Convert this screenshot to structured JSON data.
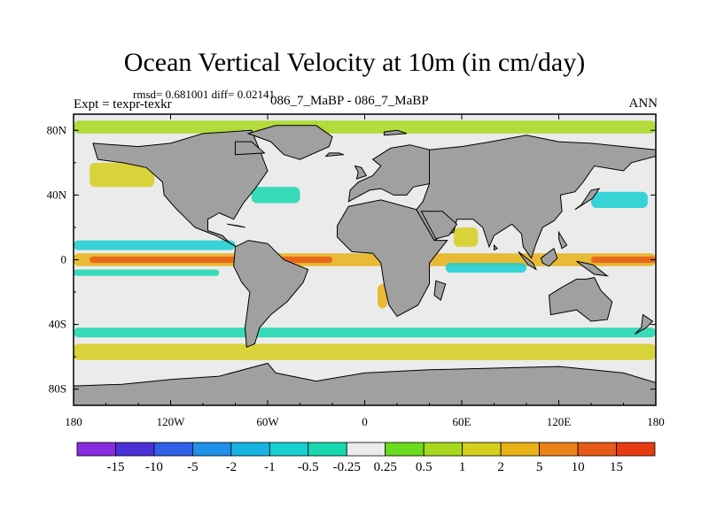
{
  "header": {
    "title": "Ocean Vertical Velocity at 10m (in cm/day)",
    "stats": "rmsd= 0.681001 diff= 0.02141",
    "left_label": "Expt = texpr-texkr",
    "center_label": "086_7_MaBP - 086_7_MaBP",
    "right_label": "ANN"
  },
  "colors": {
    "land": "#a0a0a0",
    "near_zero": "#ebebeb",
    "frame": "#000000"
  },
  "chart_data": {
    "type": "heatmap",
    "title": "Ocean Vertical Velocity at 10m (in cm/day)",
    "subtitle": "086_7_MaBP - 086_7_MaBP",
    "units": "cm/day",
    "xlim": [
      -180,
      180
    ],
    "ylim": [
      -90,
      90
    ],
    "x_ticks": [
      {
        "value": -180,
        "label": "180"
      },
      {
        "value": -120,
        "label": "120W"
      },
      {
        "value": -60,
        "label": "60W"
      },
      {
        "value": 0,
        "label": "0"
      },
      {
        "value": 60,
        "label": "60E"
      },
      {
        "value": 120,
        "label": "120E"
      },
      {
        "value": 180,
        "label": "180"
      }
    ],
    "y_ticks": [
      {
        "value": 80,
        "label": "80N"
      },
      {
        "value": 40,
        "label": "40N"
      },
      {
        "value": 0,
        "label": "0"
      },
      {
        "value": -40,
        "label": "40S"
      },
      {
        "value": -80,
        "label": "80S"
      }
    ],
    "colorbar": {
      "labels": [
        "-15",
        "-10",
        "-5",
        "-2",
        "-1",
        "-0.5",
        "-0.25",
        "0.25",
        "0.5",
        "1",
        "2",
        "5",
        "10",
        "15"
      ],
      "colors": [
        "#8a2be2",
        "#4b2fd6",
        "#2f5fe6",
        "#1f8fe8",
        "#16b4e2",
        "#17cfd2",
        "#19d8b0",
        "#ebebeb",
        "#6bdc1e",
        "#a8d81e",
        "#d6cf1c",
        "#e8b116",
        "#ea8418",
        "#e85a18",
        "#e83a10"
      ]
    },
    "land_regions": [
      {
        "name": "North America",
        "points": [
          [
            -168,
            72
          ],
          [
            -140,
            70
          ],
          [
            -120,
            72
          ],
          [
            -100,
            78
          ],
          [
            -70,
            80
          ],
          [
            -65,
            68
          ],
          [
            -60,
            55
          ],
          [
            -67,
            45
          ],
          [
            -75,
            35
          ],
          [
            -81,
            25
          ],
          [
            -90,
            29
          ],
          [
            -97,
            25
          ],
          [
            -97,
            18
          ],
          [
            -88,
            15
          ],
          [
            -83,
            10
          ],
          [
            -79,
            8
          ],
          [
            -92,
            15
          ],
          [
            -105,
            20
          ],
          [
            -110,
            25
          ],
          [
            -117,
            32
          ],
          [
            -124,
            40
          ],
          [
            -125,
            48
          ],
          [
            -135,
            57
          ],
          [
            -150,
            60
          ],
          [
            -165,
            62
          ]
        ]
      },
      {
        "name": "Greenland",
        "points": [
          [
            -72,
            78
          ],
          [
            -55,
            83
          ],
          [
            -30,
            83
          ],
          [
            -20,
            76
          ],
          [
            -22,
            70
          ],
          [
            -40,
            62
          ],
          [
            -50,
            65
          ],
          [
            -58,
            73
          ]
        ]
      },
      {
        "name": "South America",
        "points": [
          [
            -80,
            8
          ],
          [
            -72,
            12
          ],
          [
            -60,
            10
          ],
          [
            -50,
            0
          ],
          [
            -35,
            -6
          ],
          [
            -38,
            -14
          ],
          [
            -48,
            -26
          ],
          [
            -58,
            -34
          ],
          [
            -65,
            -42
          ],
          [
            -68,
            -52
          ],
          [
            -73,
            -54
          ],
          [
            -74,
            -42
          ],
          [
            -71,
            -20
          ],
          [
            -76,
            -14
          ],
          [
            -81,
            -4
          ]
        ]
      },
      {
        "name": "Africa",
        "points": [
          [
            -17,
            21
          ],
          [
            -10,
            33
          ],
          [
            10,
            37
          ],
          [
            32,
            31
          ],
          [
            43,
            12
          ],
          [
            51,
            12
          ],
          [
            40,
            -2
          ],
          [
            40,
            -15
          ],
          [
            33,
            -28
          ],
          [
            20,
            -35
          ],
          [
            15,
            -28
          ],
          [
            12,
            -15
          ],
          [
            10,
            -2
          ],
          [
            5,
            4
          ],
          [
            -8,
            5
          ],
          [
            -17,
            14
          ]
        ]
      },
      {
        "name": "Europe",
        "points": [
          [
            -10,
            36
          ],
          [
            -9,
            43
          ],
          [
            -4,
            48
          ],
          [
            5,
            52
          ],
          [
            10,
            58
          ],
          [
            5,
            62
          ],
          [
            16,
            69
          ],
          [
            28,
            71
          ],
          [
            40,
            68
          ],
          [
            45,
            60
          ],
          [
            40,
            47
          ],
          [
            30,
            45
          ],
          [
            26,
            40
          ],
          [
            18,
            40
          ],
          [
            10,
            44
          ],
          [
            3,
            43
          ]
        ]
      },
      {
        "name": "Asia",
        "points": [
          [
            40,
            68
          ],
          [
            60,
            70
          ],
          [
            78,
            73
          ],
          [
            100,
            77
          ],
          [
            120,
            73
          ],
          [
            140,
            72
          ],
          [
            160,
            70
          ],
          [
            180,
            68
          ],
          [
            180,
            64
          ],
          [
            165,
            60
          ],
          [
            160,
            55
          ],
          [
            142,
            58
          ],
          [
            135,
            48
          ],
          [
            130,
            42
          ],
          [
            121,
            40
          ],
          [
            122,
            30
          ],
          [
            117,
            24
          ],
          [
            110,
            20
          ],
          [
            106,
            10
          ],
          [
            103,
            1
          ],
          [
            98,
            8
          ],
          [
            97,
            16
          ],
          [
            91,
            22
          ],
          [
            80,
            15
          ],
          [
            77,
            8
          ],
          [
            73,
            20
          ],
          [
            67,
            25
          ],
          [
            57,
            25
          ],
          [
            55,
            17
          ],
          [
            45,
            13
          ],
          [
            43,
            12
          ],
          [
            32,
            31
          ],
          [
            36,
            36
          ],
          [
            40,
            47
          ]
        ]
      },
      {
        "name": "Arabia",
        "points": [
          [
            35,
            30
          ],
          [
            48,
            30
          ],
          [
            57,
            22
          ],
          [
            52,
            15
          ],
          [
            44,
            13
          ]
        ]
      },
      {
        "name": "Australia",
        "points": [
          [
            114,
            -22
          ],
          [
            122,
            -17
          ],
          [
            131,
            -12
          ],
          [
            137,
            -12
          ],
          [
            142,
            -11
          ],
          [
            146,
            -19
          ],
          [
            153,
            -26
          ],
          [
            150,
            -37
          ],
          [
            140,
            -38
          ],
          [
            131,
            -31
          ],
          [
            115,
            -34
          ]
        ]
      },
      {
        "name": "Antarctica",
        "points": [
          [
            -180,
            -78
          ],
          [
            -150,
            -77
          ],
          [
            -120,
            -74
          ],
          [
            -90,
            -72
          ],
          [
            -60,
            -64
          ],
          [
            -55,
            -70
          ],
          [
            -30,
            -75
          ],
          [
            0,
            -70
          ],
          [
            40,
            -68
          ],
          [
            80,
            -67
          ],
          [
            120,
            -66
          ],
          [
            160,
            -70
          ],
          [
            180,
            -76
          ],
          [
            180,
            -90
          ],
          [
            -180,
            -90
          ]
        ]
      },
      {
        "name": "Madagascar",
        "points": [
          [
            44,
            -13
          ],
          [
            50,
            -15
          ],
          [
            47,
            -25
          ],
          [
            43,
            -22
          ]
        ]
      },
      {
        "name": "Japan",
        "points": [
          [
            130,
            31
          ],
          [
            141,
            38
          ],
          [
            145,
            44
          ],
          [
            140,
            43
          ],
          [
            134,
            34
          ]
        ]
      },
      {
        "name": "Borneo",
        "points": [
          [
            109,
            1
          ],
          [
            117,
            7
          ],
          [
            119,
            1
          ],
          [
            114,
            -4
          ],
          [
            110,
            -2
          ]
        ]
      },
      {
        "name": "Sumatra",
        "points": [
          [
            95,
            5
          ],
          [
            104,
            -2
          ],
          [
            106,
            -6
          ],
          [
            101,
            -3
          ]
        ]
      },
      {
        "name": "New Guinea",
        "points": [
          [
            131,
            -1
          ],
          [
            141,
            -3
          ],
          [
            150,
            -10
          ],
          [
            142,
            -9
          ],
          [
            135,
            -4
          ]
        ]
      },
      {
        "name": "New Zealand",
        "points": [
          [
            172,
            -34
          ],
          [
            178,
            -38
          ],
          [
            174,
            -42
          ],
          [
            167,
            -46
          ],
          [
            171,
            -42
          ]
        ]
      },
      {
        "name": "UK",
        "points": [
          [
            -5,
            50
          ],
          [
            1,
            52
          ],
          [
            -2,
            57
          ],
          [
            -6,
            58
          ],
          [
            -4,
            54
          ]
        ]
      },
      {
        "name": "Iceland",
        "points": [
          [
            -24,
            64
          ],
          [
            -13,
            65
          ],
          [
            -16,
            66
          ],
          [
            -22,
            66
          ]
        ]
      },
      {
        "name": "Baffin",
        "points": [
          [
            -80,
            65
          ],
          [
            -62,
            66
          ],
          [
            -70,
            73
          ],
          [
            -80,
            73
          ]
        ]
      },
      {
        "name": "Svalbard",
        "points": [
          [
            12,
            77
          ],
          [
            26,
            78
          ],
          [
            20,
            80
          ],
          [
            12,
            79
          ]
        ]
      },
      {
        "name": "Cuba",
        "points": [
          [
            -85,
            22
          ],
          [
            -74,
            20
          ],
          [
            -78,
            21
          ]
        ]
      },
      {
        "name": "Philippines",
        "points": [
          [
            120,
            17
          ],
          [
            125,
            9
          ],
          [
            122,
            7
          ],
          [
            120,
            13
          ]
        ]
      },
      {
        "name": "Sri Lanka",
        "points": [
          [
            80,
            9
          ],
          [
            82,
            7
          ],
          [
            80,
            6
          ]
        ]
      }
    ],
    "field_bands": [
      {
        "name": "Equatorial upwelling",
        "lon": [
          -180,
          180
        ],
        "lat": [
          -4,
          4
        ],
        "value": 2
      },
      {
        "name": "Equatorial core",
        "lon": [
          -170,
          -20
        ],
        "lat": [
          -2,
          2
        ],
        "value": 10
      },
      {
        "name": "Western Pacific equatorial",
        "lon": [
          140,
          180
        ],
        "lat": [
          -2,
          2
        ],
        "value": 10
      },
      {
        "name": "North equatorial band",
        "lon": [
          -180,
          -80
        ],
        "lat": [
          6,
          12
        ],
        "value": -1
      },
      {
        "name": "South equatorial band",
        "lon": [
          -180,
          -90
        ],
        "lat": [
          -10,
          -6
        ],
        "value": -0.5
      },
      {
        "name": "Subpolar north",
        "lon": [
          -170,
          -130
        ],
        "lat": [
          45,
          60
        ],
        "value": 1
      },
      {
        "name": "Arctic margin",
        "lon": [
          -180,
          180
        ],
        "lat": [
          78,
          86
        ],
        "value": 0.5
      },
      {
        "name": "Southern Ocean upwelling",
        "lon": [
          -180,
          180
        ],
        "lat": [
          -62,
          -52
        ],
        "value": 1
      },
      {
        "name": "Southern Ocean downwelling",
        "lon": [
          -180,
          180
        ],
        "lat": [
          -48,
          -42
        ],
        "value": -0.5
      },
      {
        "name": "Coastal upwelling Benguela",
        "lon": [
          8,
          14
        ],
        "lat": [
          -30,
          -15
        ],
        "value": 2
      },
      {
        "name": "Arabian Sea",
        "lon": [
          55,
          70
        ],
        "lat": [
          8,
          20
        ],
        "value": 1
      },
      {
        "name": "Kuroshio",
        "lon": [
          140,
          175
        ],
        "lat": [
          32,
          42
        ],
        "value": -1
      },
      {
        "name": "Gulf Stream",
        "lon": [
          -70,
          -40
        ],
        "lat": [
          35,
          45
        ],
        "value": -0.5
      },
      {
        "name": "Indian equatorial",
        "lon": [
          50,
          100
        ],
        "lat": [
          -8,
          -2
        ],
        "value": -1
      }
    ]
  }
}
